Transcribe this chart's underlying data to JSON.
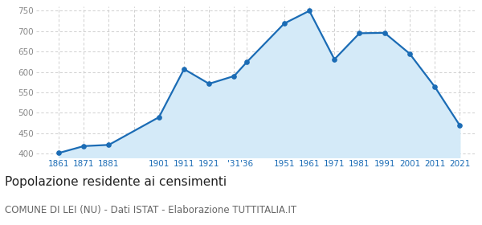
{
  "years": [
    1861,
    1871,
    1881,
    1901,
    1911,
    1921,
    1931,
    1936,
    1951,
    1961,
    1971,
    1981,
    1991,
    2001,
    2011,
    2021
  ],
  "population": [
    401,
    418,
    421,
    489,
    607,
    571,
    590,
    624,
    719,
    750,
    631,
    695,
    696,
    645,
    564,
    469
  ],
  "x_tick_positions": [
    1861,
    1871,
    1881,
    1891,
    1901,
    1911,
    1921,
    1931,
    1936,
    1951,
    1961,
    1971,
    1981,
    1991,
    2001,
    2011,
    2021
  ],
  "x_labels": [
    "1861",
    "1871",
    "1881",
    "",
    "1901",
    "1911",
    "1921",
    "'31",
    "'36",
    "1951",
    "1961",
    "1971",
    "1981",
    "1991",
    "2001",
    "2011",
    "2021"
  ],
  "ylim": [
    390,
    760
  ],
  "yticks": [
    400,
    450,
    500,
    550,
    600,
    650,
    700,
    750
  ],
  "fill_baseline": 390,
  "line_color": "#1b6cb5",
  "fill_color": "#d4eaf8",
  "marker_color": "#1b6cb5",
  "grid_color": "#c8c8c8",
  "bg_color": "#ffffff",
  "ytick_color": "#888888",
  "xtick_color": "#1b6cb5",
  "title": "Popolazione residente ai censimenti",
  "subtitle": "COMUNE DI LEI (NU) - Dati ISTAT - Elaborazione TUTTITALIA.IT",
  "title_fontsize": 11,
  "subtitle_fontsize": 8.5,
  "title_color": "#222222",
  "subtitle_color": "#666666"
}
